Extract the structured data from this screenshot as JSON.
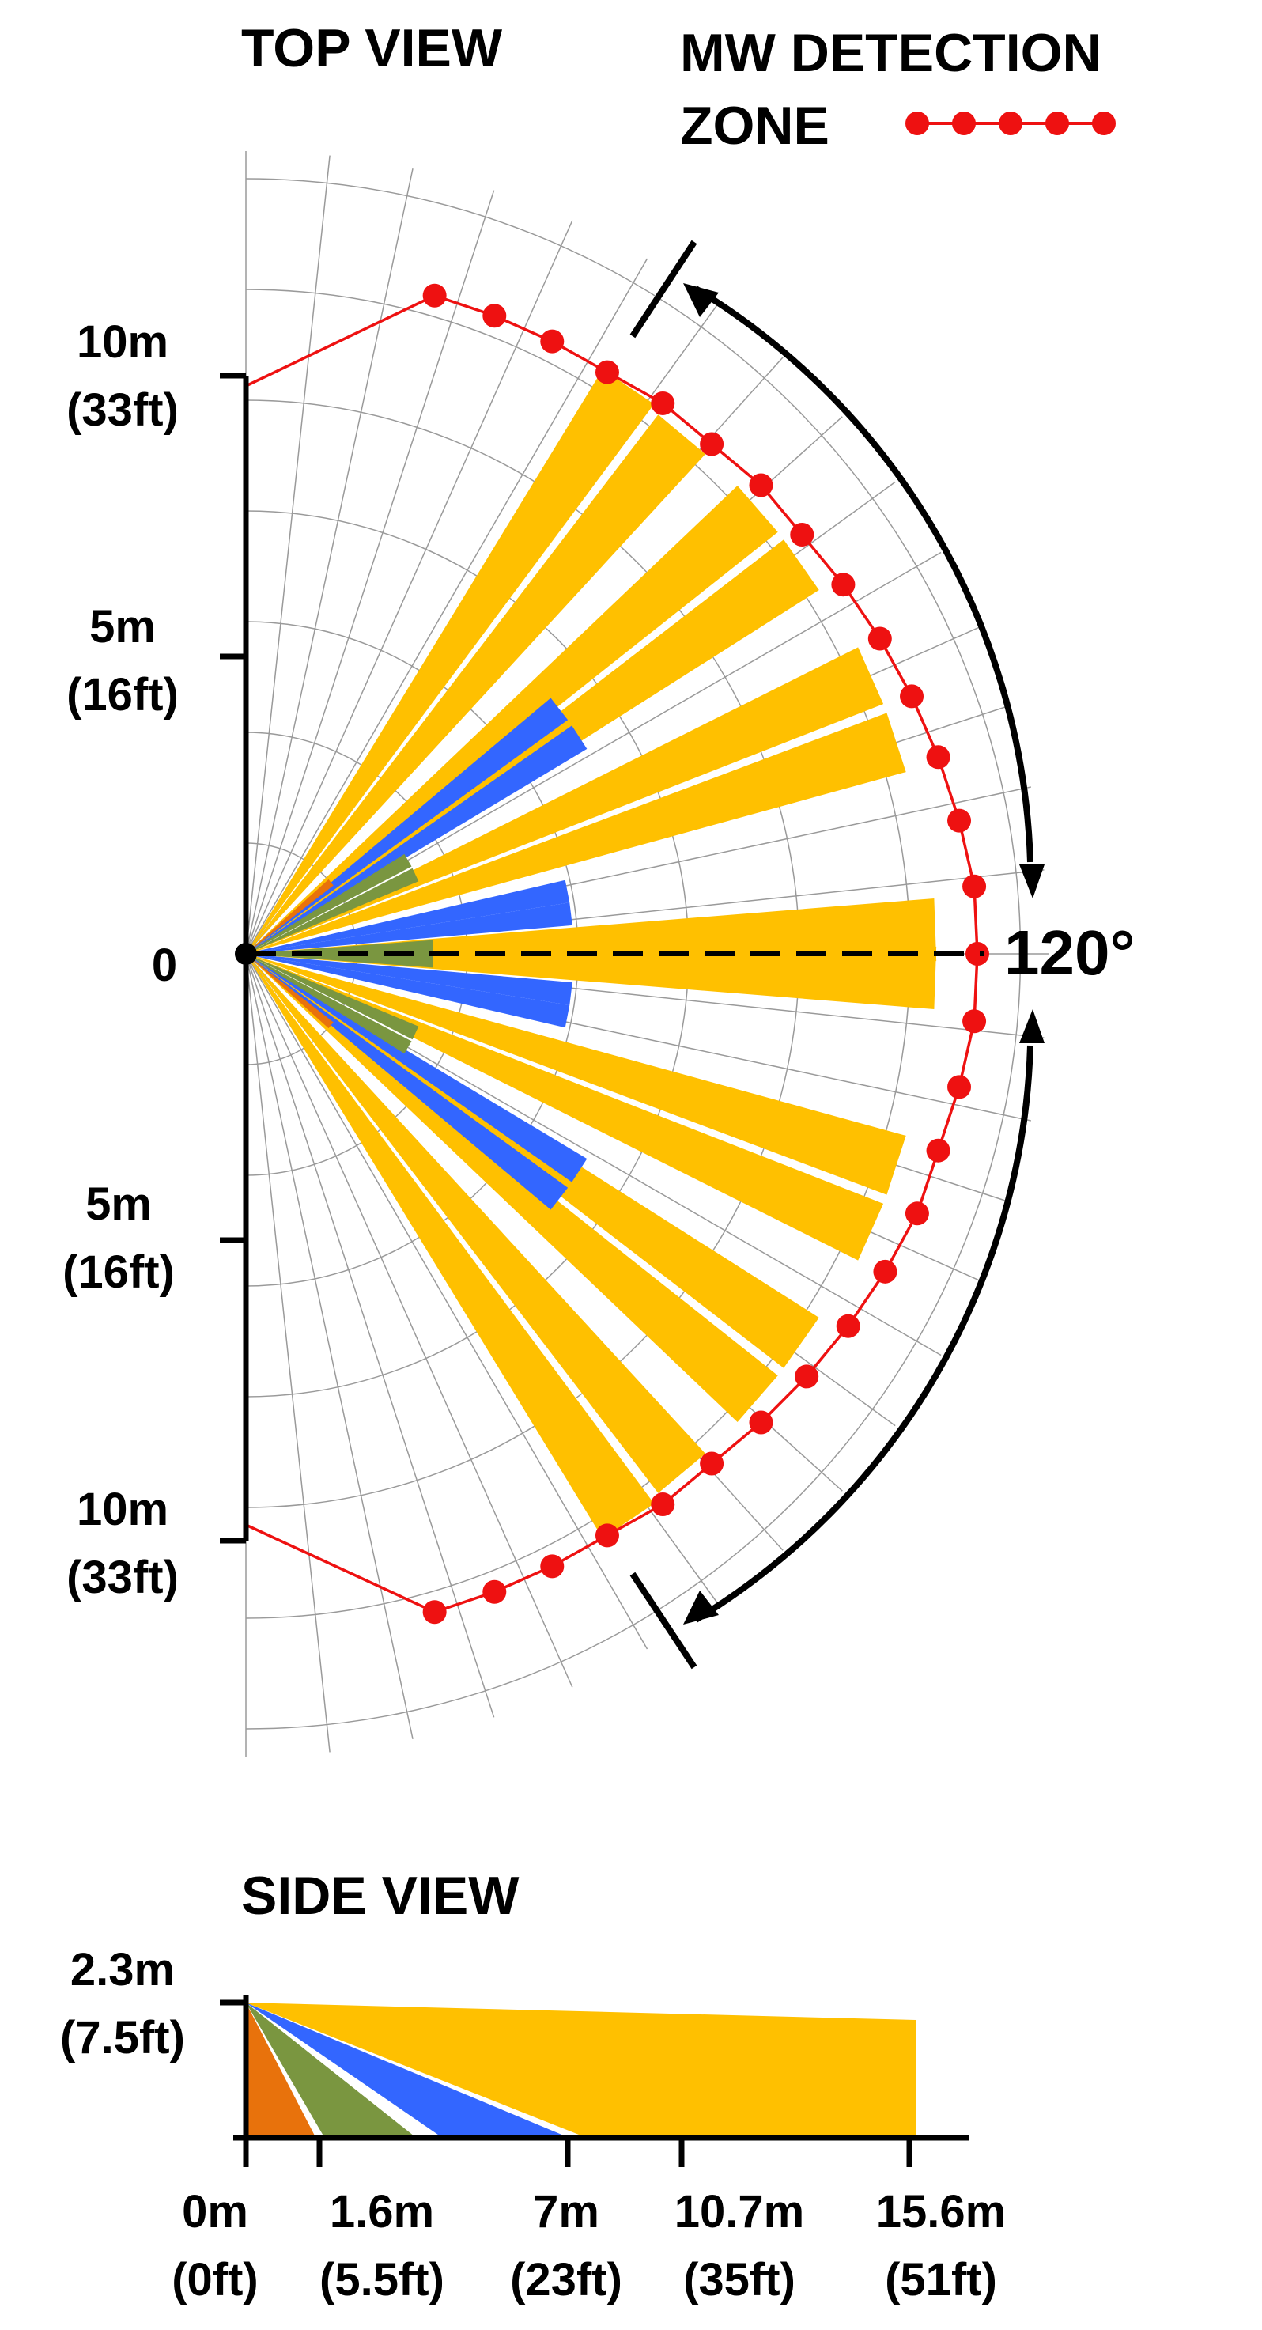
{
  "top_view": {
    "title": "TOP VIEW",
    "legend": {
      "line1": "MW DETECTION",
      "line2": "ZONE",
      "color": "#ee1111"
    },
    "angle_label": "120°",
    "y_ticks": [
      {
        "value": 10,
        "side": "up",
        "m": "10m",
        "ft": "(33ft)"
      },
      {
        "value": 5,
        "side": "up",
        "m": "5m",
        "ft": "(16ft)"
      },
      {
        "value": 0,
        "side": "center",
        "m": "0",
        "ft": ""
      },
      {
        "value": 5,
        "side": "down",
        "m": "5m",
        "ft": "(16ft)"
      },
      {
        "value": 10,
        "side": "down",
        "m": "10m",
        "ft": "(33ft)"
      }
    ],
    "beam_colors": {
      "orange": "#e8720c",
      "green": "#7a9640",
      "blue": "#3366ff",
      "yellow": "#ffc000"
    },
    "beams_m": [
      {
        "angle_deg": 2,
        "color": "yellow",
        "length": 11.8
      },
      {
        "angle_deg": -2,
        "color": "yellow",
        "length": 11.8
      },
      {
        "angle_deg": 2,
        "color": "green",
        "length": 3.2
      },
      {
        "angle_deg": -2,
        "color": "green",
        "length": 3.2
      },
      {
        "angle_deg": 7,
        "color": "blue",
        "length": 5.6
      },
      {
        "angle_deg": -7,
        "color": "blue",
        "length": 5.6
      },
      {
        "angle_deg": 11,
        "color": "blue",
        "length": 5.6
      },
      {
        "angle_deg": -11,
        "color": "blue",
        "length": 5.6
      },
      {
        "angle_deg": 18,
        "color": "yellow",
        "length": 11.7
      },
      {
        "angle_deg": -18,
        "color": "yellow",
        "length": 11.7
      },
      {
        "angle_deg": 24,
        "color": "yellow",
        "length": 11.7
      },
      {
        "angle_deg": -24,
        "color": "yellow",
        "length": 11.7
      },
      {
        "angle_deg": 25,
        "color": "green",
        "length": 3.2
      },
      {
        "angle_deg": -25,
        "color": "green",
        "length": 3.2
      },
      {
        "angle_deg": 30,
        "color": "green",
        "length": 3.2
      },
      {
        "angle_deg": -30,
        "color": "green",
        "length": 3.2
      },
      {
        "angle_deg": 33,
        "color": "blue",
        "length": 6.8
      },
      {
        "angle_deg": -33,
        "color": "blue",
        "length": 6.8
      },
      {
        "angle_deg": 38,
        "color": "blue",
        "length": 6.8
      },
      {
        "angle_deg": -38,
        "color": "blue",
        "length": 6.8
      },
      {
        "angle_deg": 35,
        "color": "yellow",
        "length": 11.6
      },
      {
        "angle_deg": -35,
        "color": "yellow",
        "length": 11.6
      },
      {
        "angle_deg": 41,
        "color": "yellow",
        "length": 11.6
      },
      {
        "angle_deg": -41,
        "color": "yellow",
        "length": 11.6
      },
      {
        "angle_deg": 40,
        "color": "orange",
        "length": 1.9
      },
      {
        "angle_deg": -40,
        "color": "orange",
        "length": 1.9
      },
      {
        "angle_deg": 50,
        "color": "yellow",
        "length": 11.6
      },
      {
        "angle_deg": -50,
        "color": "yellow",
        "length": 11.6
      },
      {
        "angle_deg": 56,
        "color": "yellow",
        "length": 11.7
      },
      {
        "angle_deg": -56,
        "color": "yellow",
        "length": 11.7
      }
    ],
    "zone_radius_m": [
      11.7,
      11.7,
      11.7,
      11.7,
      11.8,
      11.8,
      11.9,
      11.9,
      12.0,
      12.1,
      12.2,
      12.3,
      12.4,
      12.5,
      12.5,
      12.5,
      12.4,
      12.3,
      12.3,
      12.2,
      12.1,
      12.0,
      11.9,
      11.8,
      11.8,
      11.7,
      11.7,
      11.7,
      11.7
    ]
  },
  "side_view": {
    "title": "SIDE VIEW",
    "y_label": {
      "m": "2.3m",
      "ft": "(7.5ft)"
    },
    "mount_height_m": 2.3,
    "x_ticks": [
      {
        "value": 0,
        "m": "0m",
        "ft": "(0ft)"
      },
      {
        "value": 1.6,
        "m": "1.6m",
        "ft": "(5.5ft)"
      },
      {
        "value": 7,
        "m": "7m",
        "ft": "(23ft)"
      },
      {
        "value": 10.7,
        "m": "10.7m",
        "ft": "(35ft)"
      },
      {
        "value": 15.6,
        "m": "15.6m",
        "ft": "(51ft)"
      }
    ],
    "beams": [
      {
        "color": "orange",
        "near_m": 0,
        "far_m": 1.6
      },
      {
        "color": "green",
        "near_m": 1.8,
        "far_m": 3.9
      },
      {
        "color": "blue",
        "near_m": 4.5,
        "far_m": 7.4
      },
      {
        "color": "yellow",
        "near_m": 7.8,
        "far_m": 15.6,
        "far_height_m": 2.0
      }
    ]
  }
}
